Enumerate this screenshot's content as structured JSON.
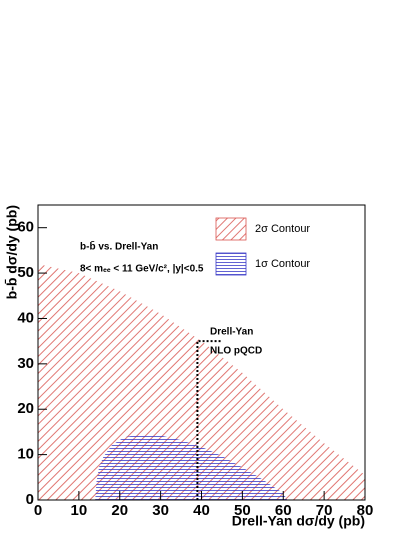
{
  "chart_data": {
    "type": "area",
    "x_label": "Drell-Yan dσ/dy (pb)",
    "y_label": "b-b̄ dσ/dy (pb)",
    "annotations": [
      "b-b̄ vs. Drell-Yan",
      "8< mₑₑ < 11 GeV/c², |y|<0.5"
    ],
    "xlim": [
      0,
      80
    ],
    "ylim": [
      0,
      65
    ],
    "xticks": [
      0,
      10,
      20,
      30,
      40,
      50,
      60,
      70,
      80
    ],
    "yticks": [
      0,
      10,
      20,
      30,
      40,
      50,
      60
    ],
    "series": [
      {
        "name": "2σ Contour",
        "color": "#d9544f",
        "hatch": "diagonal",
        "x": [
          0,
          0,
          10,
          20,
          30,
          40,
          50,
          60,
          70,
          80,
          80
        ],
        "values": [
          0,
          52,
          50,
          46,
          41,
          35,
          28,
          20,
          12.5,
          5.5,
          0
        ]
      },
      {
        "name": "1σ Contour",
        "color": "#3b3bc8",
        "hatch": "horizontal",
        "x": [
          14,
          14.3,
          15,
          16,
          18,
          21,
          25,
          30,
          35,
          40,
          45,
          50,
          55,
          60,
          61
        ],
        "values": [
          0,
          4,
          7.5,
          9.5,
          12,
          13.8,
          14.5,
          14.2,
          13.2,
          11.7,
          9.7,
          7.2,
          4.5,
          1.5,
          0
        ]
      }
    ],
    "reference_line": {
      "labels": [
        "Drell-Yan",
        "NLO pQCD"
      ],
      "color": "#000000",
      "x": [
        39,
        39,
        45
      ],
      "values": [
        0,
        35,
        35
      ]
    }
  }
}
